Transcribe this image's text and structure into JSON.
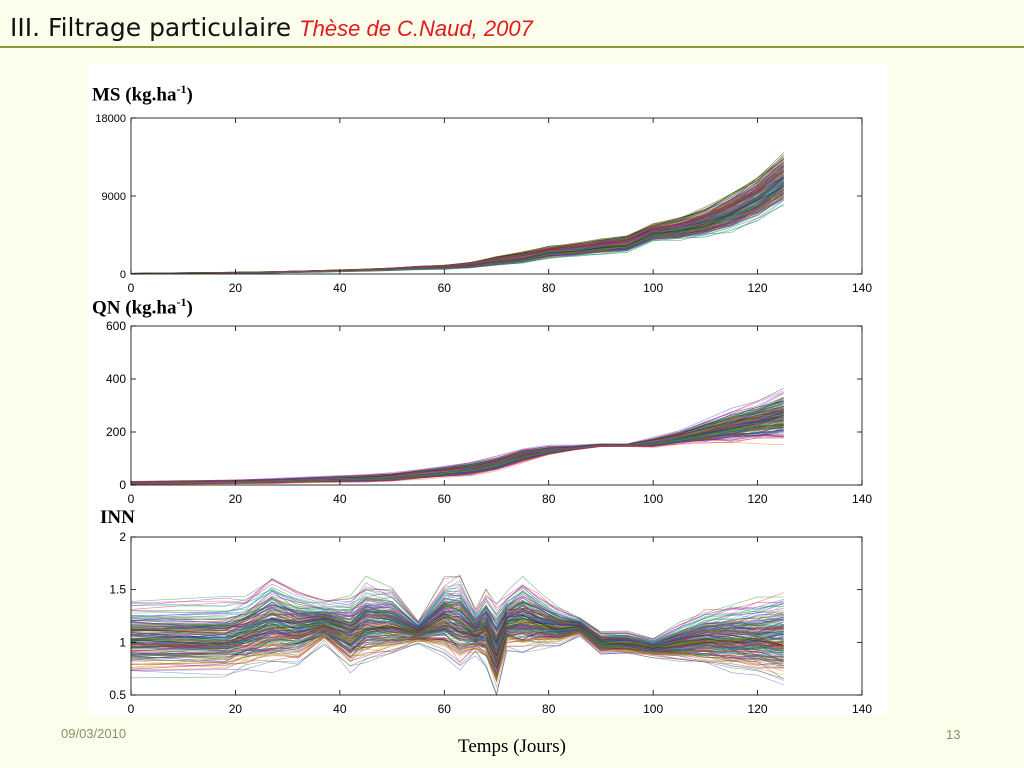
{
  "header": {
    "title": "III. Filtrage particulaire",
    "subtitle": "Thèse de C.Naud, 2007"
  },
  "footer": {
    "date": "09/03/2010",
    "page": "13"
  },
  "chart_data": [
    {
      "type": "line",
      "title": "MS (kg.ha",
      "title_sup": "-1",
      "title_close": ")",
      "xlim": [
        0,
        140
      ],
      "ylim": [
        0,
        18000
      ],
      "x_ticks": [
        0,
        20,
        40,
        60,
        80,
        100,
        120,
        140
      ],
      "y_ticks": [
        0,
        9000,
        18000
      ],
      "grid": false,
      "n_particles": 200,
      "x": [
        0,
        10,
        20,
        27,
        35,
        45,
        50,
        55,
        60,
        65,
        70,
        75,
        80,
        85,
        90,
        95,
        100,
        105,
        110,
        115,
        120,
        125
      ],
      "mean": [
        50,
        100,
        150,
        200,
        300,
        450,
        550,
        700,
        800,
        1000,
        1500,
        1900,
        2500,
        2800,
        3200,
        3500,
        4800,
        5200,
        6000,
        7200,
        8800,
        11000
      ],
      "spread": [
        20,
        30,
        40,
        50,
        60,
        80,
        100,
        120,
        150,
        200,
        300,
        400,
        400,
        450,
        500,
        600,
        600,
        800,
        1000,
        1300,
        1600,
        1800
      ]
    },
    {
      "type": "line",
      "title": "QN (kg.ha",
      "title_sup": "-1",
      "title_close": ")",
      "xlim": [
        0,
        140
      ],
      "ylim": [
        0,
        600
      ],
      "x_ticks": [
        0,
        20,
        40,
        60,
        80,
        100,
        120,
        140
      ],
      "y_ticks": [
        0,
        200,
        400,
        600
      ],
      "grid": false,
      "n_particles": 200,
      "x": [
        0,
        10,
        20,
        27,
        35,
        45,
        50,
        55,
        60,
        65,
        70,
        75,
        80,
        85,
        90,
        95,
        100,
        105,
        110,
        115,
        120,
        125
      ],
      "mean": [
        8,
        10,
        12,
        15,
        20,
        25,
        30,
        40,
        50,
        60,
        80,
        110,
        130,
        140,
        150,
        150,
        160,
        180,
        200,
        220,
        240,
        260
      ],
      "spread": [
        3,
        4,
        4,
        5,
        6,
        8,
        9,
        10,
        12,
        14,
        15,
        15,
        10,
        5,
        3,
        3,
        10,
        15,
        25,
        35,
        45,
        55
      ]
    },
    {
      "type": "line",
      "title": "INN",
      "xlim": [
        0,
        140
      ],
      "ylim": [
        0.5,
        2
      ],
      "x_ticks": [
        0,
        20,
        40,
        60,
        80,
        100,
        120,
        140
      ],
      "y_ticks": [
        0.5,
        1,
        1.5,
        2
      ],
      "grid": false,
      "n_particles": 200,
      "x": [
        0,
        18,
        22,
        27,
        32,
        37,
        42,
        45,
        50,
        55,
        60,
        63,
        66,
        68,
        70,
        72,
        75,
        78,
        82,
        86,
        90,
        95,
        100,
        105,
        110,
        115,
        120,
        125
      ],
      "mean": [
        1.05,
        1.05,
        1.1,
        1.2,
        1.15,
        1.2,
        1.1,
        1.2,
        1.2,
        1.1,
        1.25,
        1.2,
        1.1,
        1.15,
        0.95,
        1.2,
        1.25,
        1.2,
        1.15,
        1.15,
        1.0,
        1.0,
        0.95,
        1.0,
        1.05,
        1.05,
        1.05,
        1.05
      ],
      "spread": [
        0.2,
        0.2,
        0.2,
        0.25,
        0.2,
        0.12,
        0.2,
        0.22,
        0.18,
        0.06,
        0.2,
        0.25,
        0.12,
        0.2,
        0.25,
        0.15,
        0.2,
        0.15,
        0.1,
        0.05,
        0.06,
        0.06,
        0.05,
        0.1,
        0.15,
        0.18,
        0.2,
        0.25
      ]
    }
  ],
  "x_caption": "Temps (Jours)"
}
